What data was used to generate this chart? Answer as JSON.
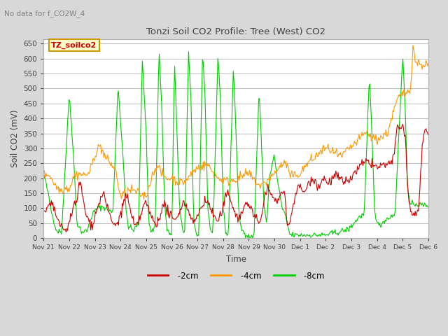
{
  "title": "Tonzi Soil CO2 Profile: Tree (West) CO2",
  "subtitle": "No data for f_CO2W_4",
  "ylabel": "Soil CO2 (mV)",
  "xlabel": "Time",
  "legend_label_box": "TZ_soilco2",
  "ylim": [
    0,
    665
  ],
  "yticks": [
    0,
    50,
    100,
    150,
    200,
    250,
    300,
    350,
    400,
    450,
    500,
    550,
    600,
    650
  ],
  "xtick_labels": [
    "Nov 21",
    "Nov 22",
    "Nov 23",
    "Nov 24",
    "Nov 25",
    "Nov 26",
    "Nov 27",
    "Nov 28",
    "Nov 29",
    "Nov 30",
    "Dec 1",
    "Dec 2",
    "Dec 3",
    "Dec 4",
    "Dec 5",
    "Dec 6"
  ],
  "color_2cm": "#cc0000",
  "color_4cm": "#ff9900",
  "color_8cm": "#00cc00",
  "bg_color": "#d8d8d8",
  "plot_bg": "#ffffff",
  "grid_color": "#c0c0c0",
  "legend_box_facecolor": "#ffffcc",
  "legend_box_edgecolor": "#cc9900",
  "title_color": "#404040",
  "subtitle_color": "#808080",
  "figsize": [
    6.4,
    4.8
  ],
  "dpi": 100
}
